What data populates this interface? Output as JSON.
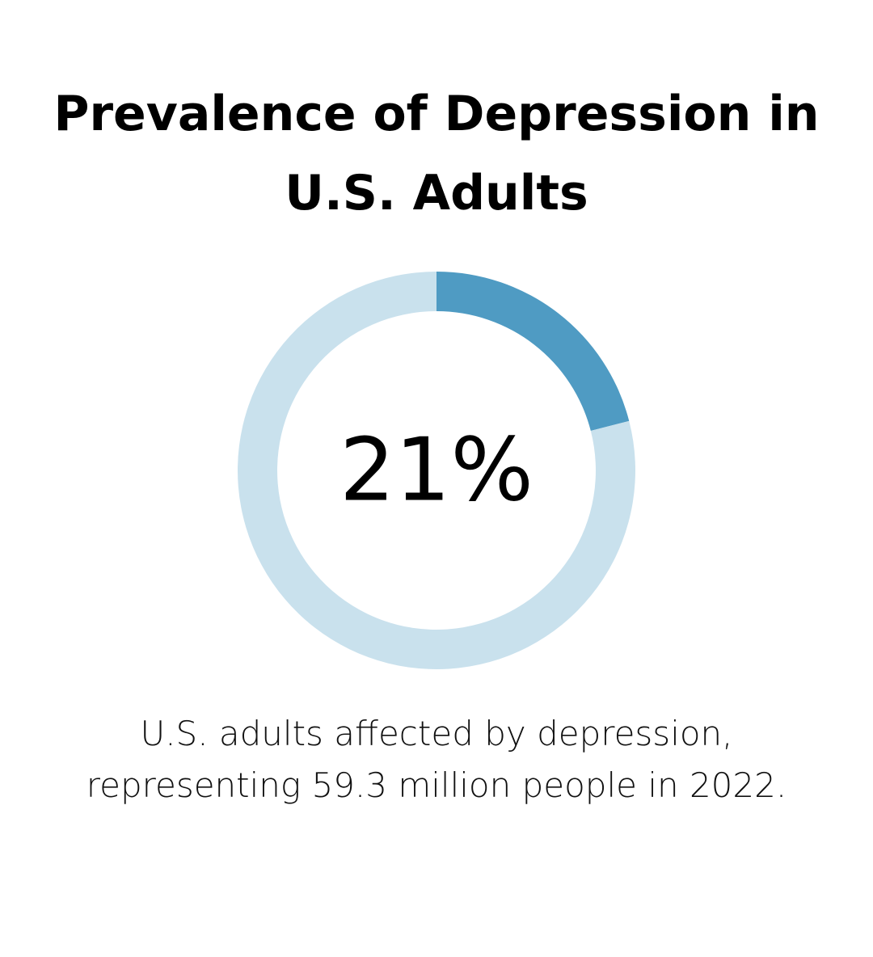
{
  "header": {
    "title_line1": "Prevalence of Depression in",
    "title_line2": "U.S. Adults"
  },
  "chart_data": {
    "type": "pie",
    "variant": "donut",
    "title": "Prevalence of Depression in U.S. Adults",
    "slices": [
      {
        "label": "U.S. adults affected by depression",
        "value": 21,
        "color": "#4f9bc3"
      },
      {
        "label": "",
        "value": 79,
        "color": "#c9e1ed"
      }
    ],
    "center_label": "21%"
  },
  "caption": {
    "line1": "U.S. adults affected by depression,",
    "line2": "representing 59.3 million people in 2022."
  },
  "colors": {
    "accent": "#4f9bc3",
    "track": "#c9e1ed",
    "text": "#000000"
  }
}
